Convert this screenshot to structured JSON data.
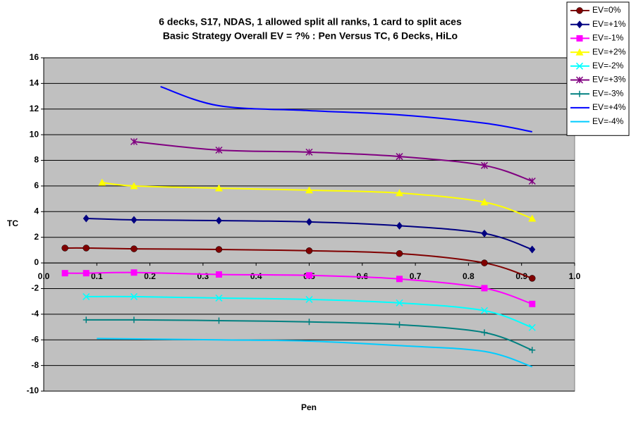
{
  "chart_data": {
    "type": "line",
    "title": "6 decks, S17, NDAS, 1 allowed split all ranks, 1 card to split aces",
    "subtitle": "Basic Strategy Overall EV = ?% : Pen Versus TC, 6 Decks, HiLo",
    "x_label": "Pen",
    "y_label": "TC",
    "xlim": [
      0,
      1
    ],
    "ylim": [
      -10,
      16
    ],
    "xticks": [
      {
        "value": 0,
        "label": "0.0"
      },
      0.1,
      0.2,
      0.3,
      0.4,
      0.5,
      0.6,
      0.7,
      0.8,
      0.9,
      {
        "value": 1,
        "label": "1.0"
      }
    ],
    "yticks": [
      -10,
      -8,
      -6,
      -4,
      -2,
      0,
      2,
      4,
      6,
      8,
      10,
      12,
      14,
      16
    ],
    "grid": true,
    "smooth": true,
    "legend": "right",
    "series": [
      {
        "name": "EV=0%",
        "color": "#800000",
        "marker": "circle",
        "x": [
          0.04,
          0.08,
          0.17,
          0.33,
          0.5,
          0.67,
          0.83,
          0.92
        ],
        "values": [
          1.16,
          1.16,
          1.1,
          1.05,
          0.95,
          0.73,
          0.0,
          -1.2
        ]
      },
      {
        "name": "EV=+1%",
        "color": "#000080",
        "marker": "diamond",
        "x": [
          0.08,
          0.17,
          0.33,
          0.5,
          0.67,
          0.83,
          0.92
        ],
        "values": [
          3.47,
          3.36,
          3.3,
          3.2,
          2.9,
          2.3,
          1.05
        ]
      },
      {
        "name": "EV=-1%",
        "color": "#ff00ff",
        "marker": "square",
        "x": [
          0.04,
          0.08,
          0.17,
          0.33,
          0.5,
          0.67,
          0.83,
          0.92
        ],
        "values": [
          -0.8,
          -0.8,
          -0.75,
          -0.9,
          -0.97,
          -1.25,
          -1.97,
          -3.2
        ]
      },
      {
        "name": "EV=+2%",
        "color": "#ffff00",
        "marker": "triangle",
        "x": [
          0.11,
          0.17,
          0.33,
          0.5,
          0.67,
          0.83,
          0.92
        ],
        "values": [
          6.27,
          6.0,
          5.83,
          5.67,
          5.45,
          4.74,
          3.47
        ]
      },
      {
        "name": "EV=-2%",
        "color": "#00ffff",
        "marker": "x",
        "x": [
          0.08,
          0.17,
          0.33,
          0.5,
          0.67,
          0.83,
          0.92
        ],
        "values": [
          -2.63,
          -2.63,
          -2.74,
          -2.85,
          -3.12,
          -3.72,
          -5.04
        ]
      },
      {
        "name": "EV=+3%",
        "color": "#800080",
        "marker": "asterisk",
        "x": [
          0.17,
          0.33,
          0.5,
          0.67,
          0.83,
          0.92
        ],
        "values": [
          9.46,
          8.8,
          8.64,
          8.3,
          7.6,
          6.38
        ]
      },
      {
        "name": "EV=-3%",
        "color": "#008080",
        "marker": "plus",
        "x": [
          0.08,
          0.17,
          0.33,
          0.5,
          0.67,
          0.83,
          0.92
        ],
        "values": [
          -4.44,
          -4.44,
          -4.5,
          -4.6,
          -4.82,
          -5.43,
          -6.8
        ]
      },
      {
        "name": "EV=+4%",
        "color": "#0000ff",
        "marker": "none",
        "x": [
          0.22,
          0.33,
          0.5,
          0.67,
          0.83,
          0.92
        ],
        "values": [
          13.75,
          12.26,
          11.88,
          11.55,
          10.9,
          10.23
        ]
      },
      {
        "name": "EV=-4%",
        "color": "#00ccff",
        "marker": "none",
        "x": [
          0.1,
          0.33,
          0.5,
          0.67,
          0.83,
          0.92
        ],
        "values": [
          -5.9,
          -6.0,
          -6.1,
          -6.45,
          -6.9,
          -8.1
        ]
      }
    ]
  }
}
